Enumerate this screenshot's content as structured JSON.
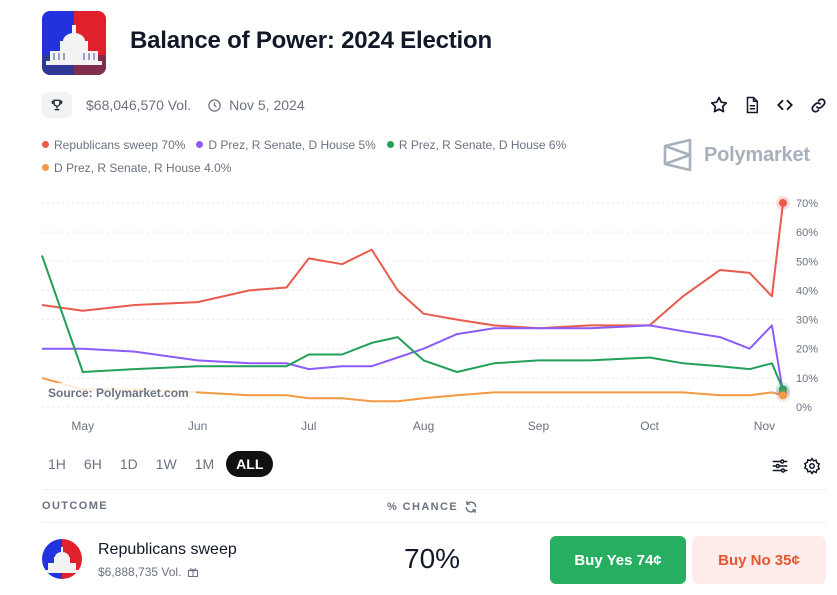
{
  "header": {
    "title": "Balance of Power: 2024 Election",
    "volume": "$68,046,570 Vol.",
    "date": "Nov 5, 2024"
  },
  "icons": {
    "trophy": "trophy-icon",
    "clock": "clock-icon",
    "star": "star-icon",
    "document": "document-icon",
    "embed": "code-icon",
    "link": "link-icon",
    "filters": "sliders-icon",
    "settings": "gear-icon",
    "refresh": "refresh-icon",
    "gift": "gift-icon"
  },
  "brand": {
    "name": "Polymarket"
  },
  "legend": [
    {
      "label": "Republicans sweep 70%",
      "color": "#e95a4f"
    },
    {
      "label": "D Prez, R Senate, D House 5%",
      "color": "#8b5cf6"
    },
    {
      "label": "R Prez, R Senate, D House 6%",
      "color": "#22a05a"
    },
    {
      "label": "D Prez, R Senate, R House 4.0%",
      "color": "#f29a45"
    }
  ],
  "chart_data": {
    "type": "line",
    "source": "Source: Polymarket.com",
    "x_labels": [
      "May",
      "Jun",
      "Jul",
      "Aug",
      "Sep",
      "Oct",
      "Nov"
    ],
    "y_ticks": [
      "0%",
      "10%",
      "20%",
      "30%",
      "40%",
      "50%",
      "60%",
      "70%"
    ],
    "ylim": [
      0,
      70
    ],
    "grid": true,
    "x": [
      "2024-04-20",
      "2024-05-01",
      "2024-05-15",
      "2024-06-01",
      "2024-06-15",
      "2024-06-25",
      "2024-07-01",
      "2024-07-10",
      "2024-07-18",
      "2024-07-25",
      "2024-08-01",
      "2024-08-10",
      "2024-08-20",
      "2024-09-01",
      "2024-09-15",
      "2024-10-01",
      "2024-10-10",
      "2024-10-20",
      "2024-10-28",
      "2024-11-03",
      "2024-11-06"
    ],
    "series": [
      {
        "name": "Republicans sweep 70%",
        "color": "#e95a4f",
        "values": [
          35,
          33,
          35,
          36,
          40,
          41,
          51,
          49,
          54,
          40,
          32,
          30,
          28,
          27,
          28,
          28,
          38,
          47,
          46,
          38,
          70
        ]
      },
      {
        "name": "D Prez, R Senate, D House 5%",
        "color": "#8b5cf6",
        "values": [
          20,
          20,
          19,
          16,
          15,
          15,
          13,
          14,
          14,
          17,
          20,
          25,
          27,
          27,
          27,
          28,
          26,
          24,
          20,
          28,
          5
        ]
      },
      {
        "name": "R Prez, R Senate, D House 6%",
        "color": "#22a05a",
        "values": [
          52,
          12,
          13,
          14,
          14,
          14,
          18,
          18,
          22,
          24,
          16,
          12,
          15,
          16,
          16,
          17,
          15,
          14,
          13,
          15,
          6
        ]
      },
      {
        "name": "D Prez, R Senate, R House 4.0%",
        "color": "#f29a45",
        "values": [
          10,
          6,
          6,
          5,
          4,
          4,
          3,
          3,
          2,
          2,
          3,
          4,
          5,
          5,
          5,
          5,
          5,
          4,
          4,
          5,
          4
        ]
      }
    ]
  },
  "time_ranges": [
    {
      "label": "1H",
      "active": false
    },
    {
      "label": "6H",
      "active": false
    },
    {
      "label": "1D",
      "active": false
    },
    {
      "label": "1W",
      "active": false
    },
    {
      "label": "1M",
      "active": false
    },
    {
      "label": "ALL",
      "active": true
    }
  ],
  "table": {
    "outcome_header": "OUTCOME",
    "chance_header": "% CHANCE",
    "rows": [
      {
        "name": "Republicans sweep",
        "volume": "$6,888,735 Vol.",
        "chance": "70%",
        "buy_yes": "Buy Yes 74¢",
        "buy_no": "Buy No 35¢"
      }
    ]
  }
}
